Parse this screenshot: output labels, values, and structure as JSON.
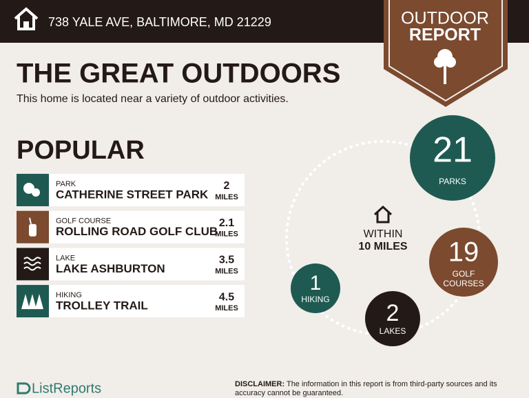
{
  "header": {
    "address": "738 YALE AVE, BALTIMORE, MD 21229"
  },
  "badge": {
    "line1": "OUTDOOR",
    "line2": "REPORT"
  },
  "title": "THE GREAT OUTDOORS",
  "subtitle": "This home is located near a variety of outdoor activities.",
  "popular": {
    "heading": "POPULAR",
    "items": [
      {
        "category": "PARK",
        "name": "CATHERINE STREET PARK",
        "distance": "2",
        "unit": "MILES"
      },
      {
        "category": "GOLF COURSE",
        "name": "ROLLING ROAD GOLF CLUB",
        "distance": "2.1",
        "unit": "MILES"
      },
      {
        "category": "LAKE",
        "name": "LAKE ASHBURTON",
        "distance": "3.5",
        "unit": "MILES"
      },
      {
        "category": "HIKING",
        "name": "TROLLEY TRAIL",
        "distance": "4.5",
        "unit": "MILES"
      }
    ]
  },
  "summary": {
    "center": {
      "line1": "WITHIN",
      "line2": "10 MILES"
    },
    "counts": [
      {
        "value": "21",
        "label_lines": [
          "PARKS"
        ]
      },
      {
        "value": "19",
        "label_lines": [
          "GOLF",
          "COURSES"
        ]
      },
      {
        "value": "2",
        "label_lines": [
          "LAKES"
        ]
      },
      {
        "value": "1",
        "label_lines": [
          "HIKING"
        ]
      }
    ]
  },
  "footer": {
    "brand": "ListReports",
    "disclaimer_label": "DISCLAIMER:",
    "disclaimer_text": "The information in this report is from third-party sources and its accuracy cannot be guaranteed."
  }
}
